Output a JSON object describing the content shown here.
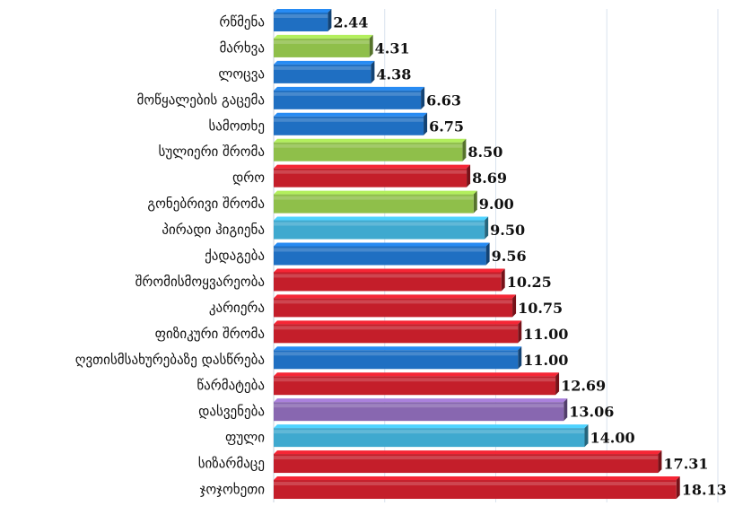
{
  "chart_data": {
    "type": "bar",
    "orientation": "horizontal",
    "title": "",
    "xlabel": "",
    "ylabel": "",
    "xlim": [
      0,
      20
    ],
    "grid": true,
    "legend": "none",
    "categories": [
      "რწმენა",
      "მარხვა",
      "ლოცვა",
      "მოწყალების გაცემა",
      "სამოთხე",
      "სულიერი შრომა",
      "დრო",
      "გონებრივი შრომა",
      "პირადი ჰიგიენა",
      "ქადაგება",
      "შრომისმოყვარეობა",
      "კარიერა",
      "ფიზიკური შრომა",
      "ღვთისმსახურებაზე დასწრება",
      "წარმატება",
      "დასვენება",
      "ფული",
      "სიზარმაცე",
      "ჯოჯოხეთი"
    ],
    "values": [
      2.44,
      4.31,
      4.38,
      6.63,
      6.75,
      8.5,
      8.69,
      9.0,
      9.5,
      9.56,
      10.25,
      10.75,
      11.0,
      11.0,
      12.69,
      13.06,
      14.0,
      17.31,
      18.13
    ],
    "value_labels": [
      "2.44",
      "4.31",
      "4.38",
      "6.63",
      "6.75",
      "8.50",
      "8.69",
      "9.00",
      "9.50",
      "9.56",
      "10.25",
      "10.75",
      "11.00",
      "11.00",
      "12.69",
      "13.06",
      "14.00",
      "17.31",
      "18.13"
    ],
    "bar_colors": [
      "#1f6fc2",
      "#8fbf4a",
      "#1f6fc2",
      "#1f6fc2",
      "#1f6fc2",
      "#8fbf4a",
      "#c41e2a",
      "#8fbf4a",
      "#3fa9cf",
      "#1f6fc2",
      "#c41e2a",
      "#c41e2a",
      "#c41e2a",
      "#1f6fc2",
      "#c41e2a",
      "#8867b0",
      "#3fa9cf",
      "#c41e2a",
      "#c41e2a"
    ]
  }
}
